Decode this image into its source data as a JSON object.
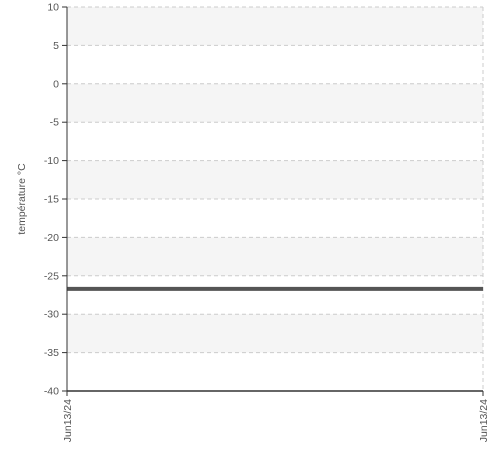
{
  "chart_data": {
    "type": "line",
    "ylabel": "température °C",
    "xlabel": "",
    "ylim": [
      -40,
      10
    ],
    "yticks": [
      10,
      5,
      0,
      -5,
      -10,
      -15,
      -20,
      -25,
      -30,
      -35,
      -40
    ],
    "x": [
      "Jun13/24",
      "Jun13/24"
    ],
    "series": [
      {
        "values": [
          -26.7,
          -26.7
        ],
        "color": "#555555"
      }
    ],
    "grid": true,
    "band_color": "#f5f5f5",
    "grid_color": "#cccccc",
    "axis_color": "#333333"
  }
}
